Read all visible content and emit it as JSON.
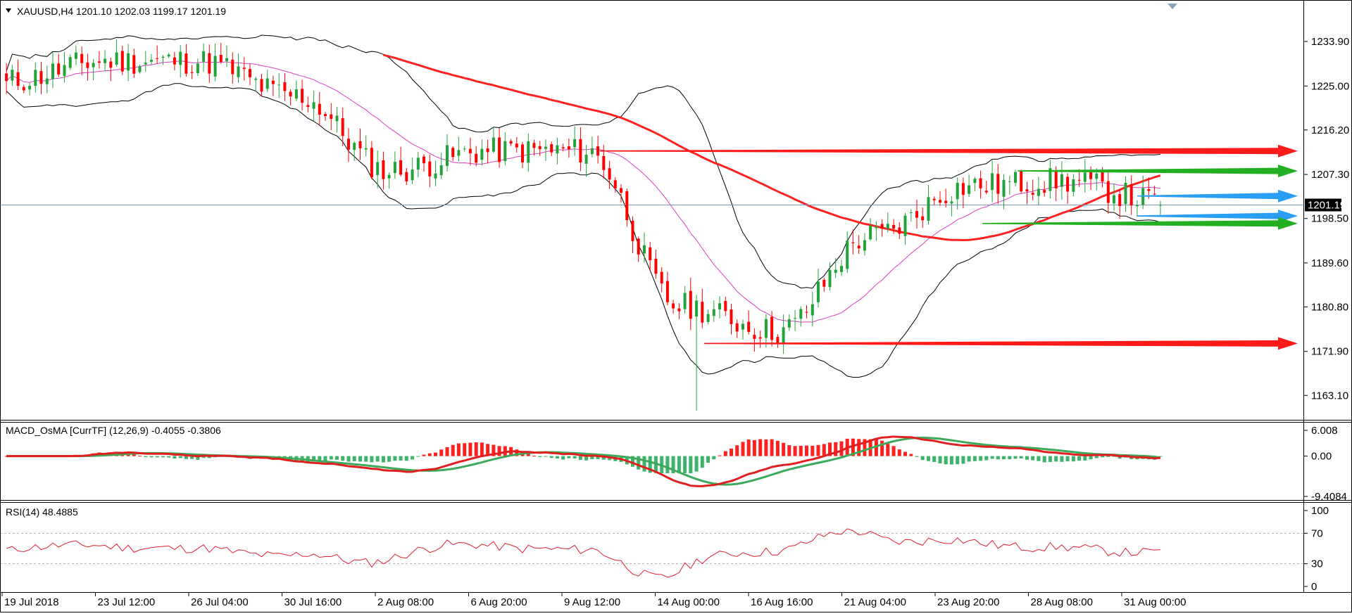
{
  "header": {
    "menu_icon": "triangle-down-icon",
    "symbol_info": "XAUUSD,H4  1201.10 1202.03 1199.17 1201.19"
  },
  "colors": {
    "bull": "#22a33a",
    "bear": "#ff0000",
    "ma_red": "#ff2222",
    "bb": "#000000",
    "bb_mid": "#e040c0",
    "arrow_red": "#ff1a1a",
    "arrow_green": "#22b022",
    "arrow_blue": "#2a9df4",
    "macd_line": "#e02020",
    "signal_line": "#3caa5a",
    "rsi": "#e02030"
  },
  "time_axis": [
    "19 Jul 2018",
    "23 Jul 12:00",
    "26 Jul 04:00",
    "30 Jul 16:00",
    "2 Aug 08:00",
    "6 Aug 20:00",
    "9 Aug 12:00",
    "14 Aug 00:00",
    "16 Aug 16:00",
    "21 Aug 04:00",
    "23 Aug 20:00",
    "28 Aug 08:00",
    "31 Aug 00:00"
  ],
  "chart_data": [
    {
      "type": "candlestick",
      "title": "XAUUSD,H4",
      "symbol": "XAUUSD",
      "timeframe": "H4",
      "ohlc_current": {
        "open": 1201.1,
        "high": 1202.03,
        "low": 1199.17,
        "close": 1201.19
      },
      "current_price_label": "1201.19",
      "y_ticks": [
        1233.9,
        1225.0,
        1216.2,
        1207.3,
        1198.5,
        1189.6,
        1180.8,
        1171.9,
        1163.1
      ],
      "ylim": [
        1158.5,
        1241.5
      ],
      "x_tick_labels": [
        "19 Jul 2018",
        "23 Jul 12:00",
        "26 Jul 04:00",
        "30 Jul 16:00",
        "2 Aug 08:00",
        "6 Aug 20:00",
        "9 Aug 12:00",
        "14 Aug 00:00",
        "16 Aug 16:00",
        "21 Aug 04:00",
        "23 Aug 20:00",
        "28 Aug 08:00",
        "31 Aug 00:00"
      ],
      "key_closes": [
        {
          "time": "19 Jul 2018",
          "close": 1226
        },
        {
          "time": "23 Jul 12:00",
          "close": 1230
        },
        {
          "time": "26 Jul 04:00",
          "close": 1230
        },
        {
          "time": "30 Jul 16:00",
          "close": 1223
        },
        {
          "time": "2 Aug 08:00",
          "close": 1208
        },
        {
          "time": "6 Aug 20:00",
          "close": 1212
        },
        {
          "time": "9 Aug 12:00",
          "close": 1212
        },
        {
          "time": "14 Aug 00:00",
          "close": 1181
        },
        {
          "time": "16 Aug 16:00",
          "close": 1176
        },
        {
          "time": "21 Aug 04:00",
          "close": 1195
        },
        {
          "time": "23 Aug 20:00",
          "close": 1205
        },
        {
          "time": "28 Aug 08:00",
          "close": 1206
        },
        {
          "time": "31 Aug 00:00",
          "close": 1202
        }
      ],
      "swing_low": 1160.0,
      "overlays": [
        "Bollinger Bands",
        "moving average (red)"
      ],
      "horizontal_arrows": [
        {
          "color": "red",
          "price": 1212.0
        },
        {
          "color": "green",
          "price": 1208.0
        },
        {
          "color": "blue",
          "price": 1203.0
        },
        {
          "color": "blue",
          "price": 1199.0
        },
        {
          "color": "green",
          "price": 1197.5
        },
        {
          "color": "red",
          "price": 1173.5
        }
      ],
      "grid": false
    },
    {
      "type": "bar",
      "title": "MACD_OsMA [CurrTF] (12,26,9) -0.4055 -0.3806",
      "macd_value": -0.4055,
      "signal_value": -0.3806,
      "y_ticks": [
        6.008,
        0.0,
        -9.4084
      ],
      "ylim": [
        -9.4084,
        6.008
      ],
      "histogram_range": [
        -4.0,
        6.0
      ]
    },
    {
      "type": "line",
      "title": "RSI(14) 48.4885",
      "current_value": 48.4885,
      "y_ticks": [
        100,
        70,
        30,
        0
      ],
      "levels": [
        70,
        30
      ],
      "ylim": [
        0,
        100
      ]
    }
  ]
}
